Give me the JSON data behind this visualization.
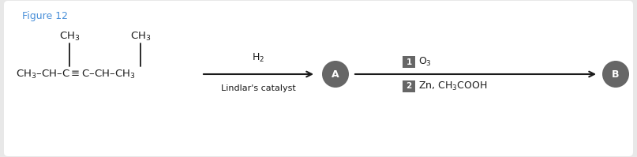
{
  "figure_label": "Figure 12",
  "figure_label_color": "#4a90d9",
  "background_color": "#e8e8e8",
  "inner_background": "#ffffff",
  "text_color": "#1a1a1a",
  "circle_color": "#666666",
  "box_color": "#666666",
  "circle_A_label": "A",
  "circle_B_label": "B",
  "box1_label": "1",
  "box2_label": "2",
  "fig_width": 8.07,
  "fig_height": 1.99,
  "dpi": 100
}
